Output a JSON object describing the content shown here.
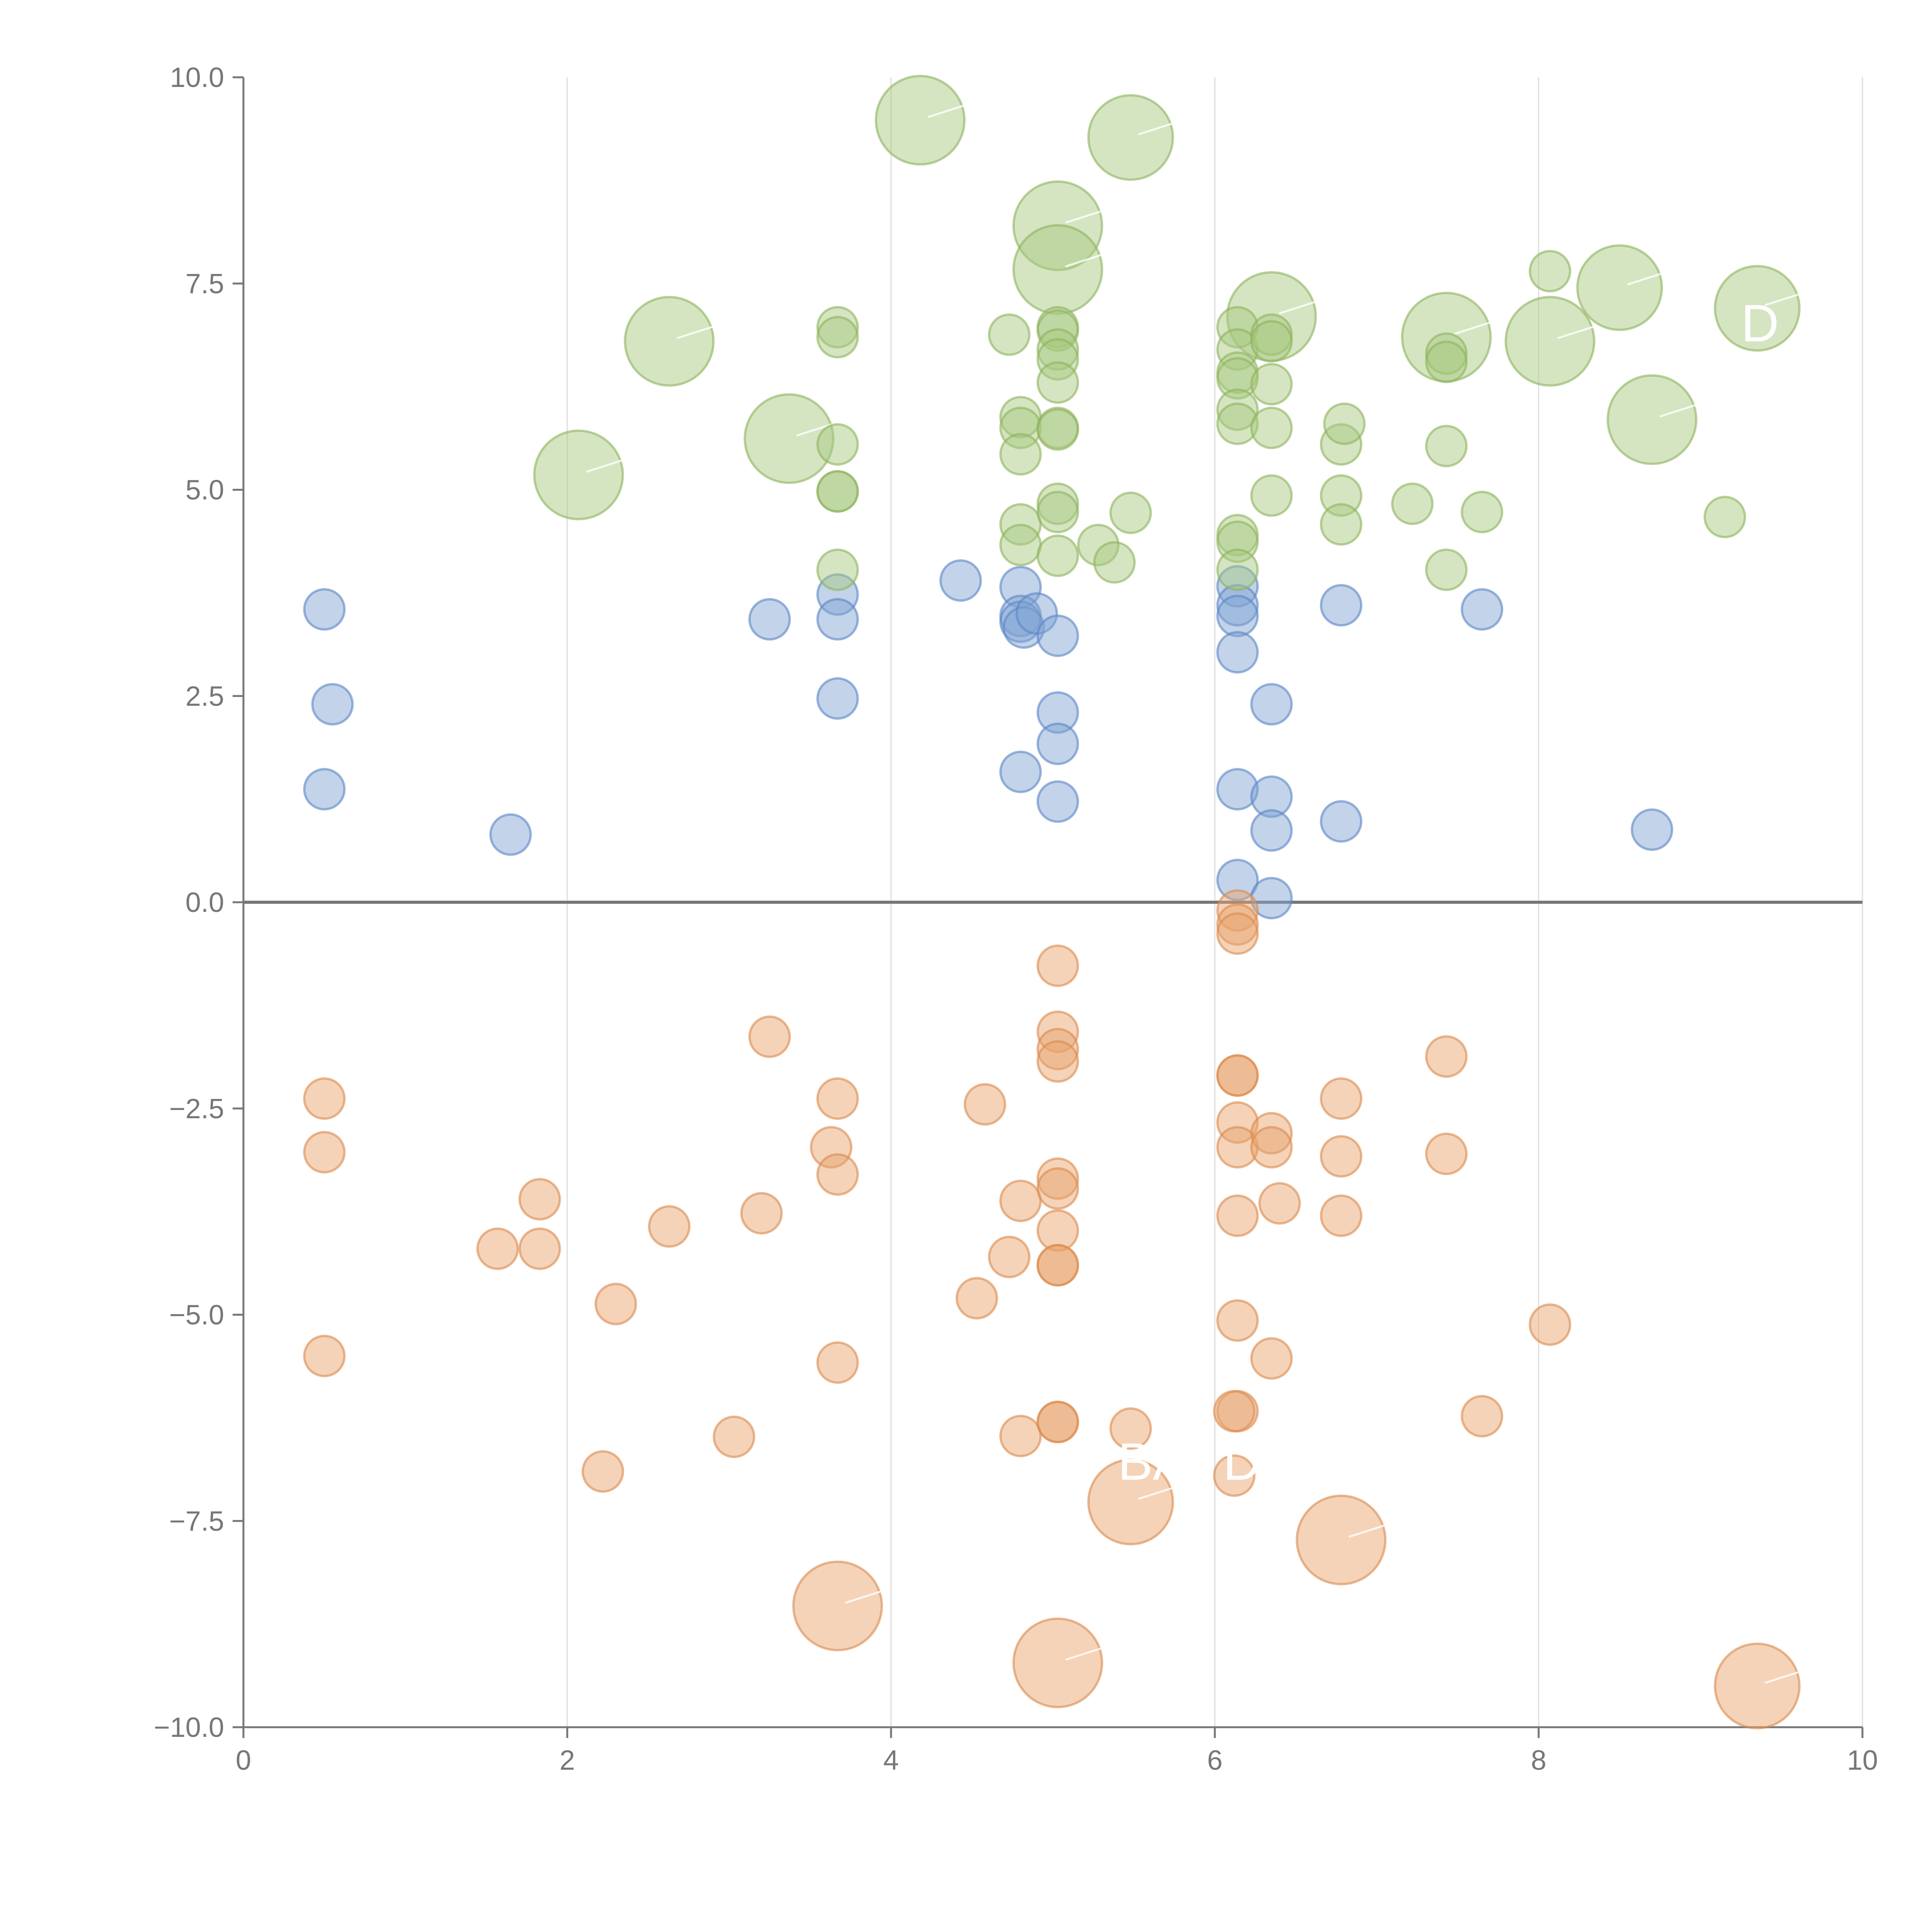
{
  "chart_data": {
    "type": "scatter",
    "title": "",
    "xlabel": "",
    "ylabel": "",
    "xlim": [
      0,
      10
    ],
    "ylim": [
      -10,
      10
    ],
    "x_ticks": [
      0,
      2,
      4,
      6,
      8,
      10
    ],
    "x_tick_labels": [
      "0",
      "2",
      "4",
      "6",
      "8",
      "10"
    ],
    "y_ticks": [
      10,
      7.5,
      5,
      2.5,
      0,
      -2.5,
      -5,
      -7.5,
      -10
    ],
    "y_tick_labels": [
      "10.0",
      "7.5",
      "5.0",
      "2.5",
      "0.0",
      "−2.5",
      "−5.0",
      "−7.5",
      "−10.0"
    ],
    "vertical_grid": true,
    "zero_line": true,
    "legend": "none",
    "colors": {
      "blue_fill": "#7fa3d4",
      "blue_stroke": "#5a86c4",
      "green_fill": "#a8c97f",
      "green_stroke": "#8db35c",
      "orange_fill": "#e9a46d",
      "orange_stroke": "#db8a4d",
      "axis": "#777777",
      "grid": "#dddddd",
      "zero_line": "#777777",
      "label_text": "#ffffff"
    },
    "annotations": [
      {
        "text": "BA",
        "x": 5.4,
        "y": -7.0
      },
      {
        "text": "D",
        "x": 6.05,
        "y": -7.0
      },
      {
        "text": "D",
        "x": 9.25,
        "y": 6.8
      }
    ],
    "series": [
      {
        "name": "blue",
        "color": "blue",
        "points": [
          [
            0.5,
            3.55,
            1
          ],
          [
            0.55,
            2.4,
            1
          ],
          [
            0.5,
            1.37,
            1
          ],
          [
            1.65,
            0.82,
            1
          ],
          [
            3.25,
            3.43,
            1
          ],
          [
            3.67,
            3.73,
            1
          ],
          [
            3.67,
            3.43,
            1
          ],
          [
            3.67,
            2.47,
            1
          ],
          [
            4.43,
            3.9,
            1
          ],
          [
            4.8,
            3.82,
            1
          ],
          [
            4.8,
            3.47,
            1
          ],
          [
            4.8,
            3.4,
            1
          ],
          [
            4.82,
            3.33,
            1
          ],
          [
            4.9,
            3.5,
            1
          ],
          [
            5.03,
            3.23,
            1
          ],
          [
            5.03,
            2.3,
            1
          ],
          [
            5.03,
            1.92,
            1
          ],
          [
            4.8,
            1.58,
            1
          ],
          [
            5.03,
            1.22,
            1
          ],
          [
            6.14,
            3.83,
            1
          ],
          [
            6.14,
            3.6,
            1
          ],
          [
            6.14,
            3.47,
            1
          ],
          [
            6.14,
            3.03,
            1
          ],
          [
            6.35,
            2.4,
            1
          ],
          [
            6.14,
            1.37,
            1
          ],
          [
            6.35,
            1.28,
            1
          ],
          [
            6.35,
            0.87,
            1
          ],
          [
            6.14,
            0.27,
            1
          ],
          [
            6.35,
            0.05,
            1
          ],
          [
            6.78,
            3.6,
            1
          ],
          [
            6.78,
            0.98,
            1
          ],
          [
            7.65,
            3.55,
            1
          ],
          [
            8.7,
            0.88,
            1
          ]
        ]
      },
      {
        "name": "green",
        "color": "green",
        "points": [
          [
            4.18,
            9.48,
            2.2
          ],
          [
            5.48,
            9.27,
            2.1
          ],
          [
            5.03,
            8.2,
            2.2
          ],
          [
            5.03,
            7.67,
            2.2
          ],
          [
            2.63,
            6.8,
            2.2
          ],
          [
            2.07,
            5.18,
            2.2
          ],
          [
            3.37,
            5.62,
            2.2
          ],
          [
            6.35,
            7.1,
            2.2
          ],
          [
            7.43,
            6.85,
            2.2
          ],
          [
            8.07,
            6.8,
            2.2
          ],
          [
            8.5,
            7.45,
            2.1
          ],
          [
            9.35,
            7.2,
            2.1
          ],
          [
            8.7,
            5.85,
            2.2
          ],
          [
            3.67,
            6.97,
            1
          ],
          [
            3.67,
            6.85,
            1
          ],
          [
            3.67,
            5.55,
            1
          ],
          [
            3.67,
            4.98,
            1
          ],
          [
            3.67,
            4.98,
            1
          ],
          [
            3.67,
            4.03,
            1
          ],
          [
            4.73,
            6.88,
            1
          ],
          [
            4.8,
            5.88,
            1
          ],
          [
            4.8,
            5.75,
            1
          ],
          [
            4.8,
            5.43,
            1
          ],
          [
            4.8,
            4.58,
            1
          ],
          [
            4.8,
            4.33,
            1
          ],
          [
            5.03,
            6.97,
            1
          ],
          [
            5.03,
            6.93,
            1
          ],
          [
            5.03,
            6.7,
            1
          ],
          [
            5.03,
            6.58,
            1
          ],
          [
            5.03,
            6.3,
            1
          ],
          [
            5.03,
            5.75,
            1
          ],
          [
            5.03,
            5.73,
            1
          ],
          [
            5.03,
            4.83,
            1
          ],
          [
            5.03,
            4.73,
            1
          ],
          [
            5.03,
            4.2,
            1
          ],
          [
            5.28,
            4.33,
            1
          ],
          [
            5.38,
            4.12,
            1
          ],
          [
            5.48,
            4.72,
            1
          ],
          [
            6.14,
            6.97,
            1
          ],
          [
            6.14,
            6.7,
            1
          ],
          [
            6.14,
            6.42,
            1
          ],
          [
            6.14,
            6.35,
            1
          ],
          [
            6.14,
            5.97,
            1
          ],
          [
            6.14,
            5.8,
            1
          ],
          [
            6.14,
            4.45,
            1
          ],
          [
            6.14,
            4.37,
            1
          ],
          [
            6.14,
            4.03,
            1
          ],
          [
            6.35,
            6.88,
            1
          ],
          [
            6.35,
            6.8,
            1
          ],
          [
            6.35,
            6.28,
            1
          ],
          [
            6.35,
            5.75,
            1
          ],
          [
            6.35,
            4.93,
            1
          ],
          [
            6.78,
            5.55,
            1
          ],
          [
            6.8,
            5.8,
            1
          ],
          [
            6.78,
            4.93,
            1
          ],
          [
            6.78,
            4.58,
            1
          ],
          [
            7.22,
            4.83,
            1
          ],
          [
            7.43,
            6.65,
            1
          ],
          [
            7.43,
            6.55,
            1
          ],
          [
            7.43,
            5.53,
            1
          ],
          [
            7.43,
            4.03,
            1
          ],
          [
            7.65,
            4.73,
            1
          ],
          [
            8.07,
            7.65,
            1
          ],
          [
            9.15,
            4.67,
            1
          ]
        ]
      },
      {
        "name": "orange",
        "color": "orange",
        "points": [
          [
            5.48,
            -7.27,
            2.1
          ],
          [
            6.78,
            -7.73,
            2.2
          ],
          [
            3.67,
            -8.53,
            2.2
          ],
          [
            5.03,
            -9.22,
            2.2
          ],
          [
            9.35,
            -9.5,
            2.1
          ],
          [
            0.5,
            -2.38,
            1
          ],
          [
            0.5,
            -3.03,
            1
          ],
          [
            0.5,
            -5.5,
            1
          ],
          [
            1.57,
            -4.2,
            1
          ],
          [
            1.83,
            -3.6,
            1
          ],
          [
            1.83,
            -4.2,
            1
          ],
          [
            2.22,
            -6.9,
            1
          ],
          [
            2.3,
            -4.87,
            1
          ],
          [
            2.63,
            -3.93,
            1
          ],
          [
            3.03,
            -6.48,
            1
          ],
          [
            3.2,
            -3.77,
            1
          ],
          [
            3.25,
            -1.63,
            1
          ],
          [
            3.63,
            -2.97,
            1
          ],
          [
            3.67,
            -2.38,
            1
          ],
          [
            3.67,
            -3.3,
            1
          ],
          [
            3.67,
            -5.58,
            1
          ],
          [
            4.53,
            -4.8,
            1
          ],
          [
            4.58,
            -2.45,
            1
          ],
          [
            4.73,
            -4.3,
            1
          ],
          [
            4.8,
            -3.62,
            1
          ],
          [
            4.8,
            -6.47,
            1
          ],
          [
            5.03,
            -0.77,
            1
          ],
          [
            5.03,
            -1.57,
            1
          ],
          [
            5.03,
            -1.78,
            1
          ],
          [
            5.03,
            -1.93,
            1
          ],
          [
            5.03,
            -3.35,
            1
          ],
          [
            5.03,
            -3.47,
            1
          ],
          [
            5.03,
            -3.98,
            1
          ],
          [
            5.03,
            -4.4,
            1
          ],
          [
            5.03,
            -4.4,
            1
          ],
          [
            5.03,
            -6.3,
            1
          ],
          [
            5.03,
            -6.3,
            1
          ],
          [
            5.48,
            -6.38,
            1
          ],
          [
            6.14,
            -0.1,
            1
          ],
          [
            6.14,
            -0.27,
            1
          ],
          [
            6.14,
            -0.38,
            1
          ],
          [
            6.14,
            -2.1,
            1
          ],
          [
            6.14,
            -2.1,
            1
          ],
          [
            6.14,
            -2.67,
            1
          ],
          [
            6.14,
            -2.97,
            1
          ],
          [
            6.14,
            -3.8,
            1
          ],
          [
            6.14,
            -5.07,
            1
          ],
          [
            6.14,
            -6.17,
            1
          ],
          [
            6.12,
            -6.17,
            1
          ],
          [
            6.12,
            -6.95,
            1
          ],
          [
            6.35,
            -2.8,
            1
          ],
          [
            6.35,
            -2.97,
            1
          ],
          [
            6.35,
            -5.53,
            1
          ],
          [
            6.4,
            -3.65,
            1
          ],
          [
            6.78,
            -2.38,
            1
          ],
          [
            6.78,
            -3.08,
            1
          ],
          [
            6.78,
            -3.8,
            1
          ],
          [
            7.43,
            -1.87,
            1
          ],
          [
            7.43,
            -3.05,
            1
          ],
          [
            7.65,
            -6.23,
            1
          ],
          [
            8.07,
            -5.12,
            1
          ]
        ]
      }
    ]
  }
}
